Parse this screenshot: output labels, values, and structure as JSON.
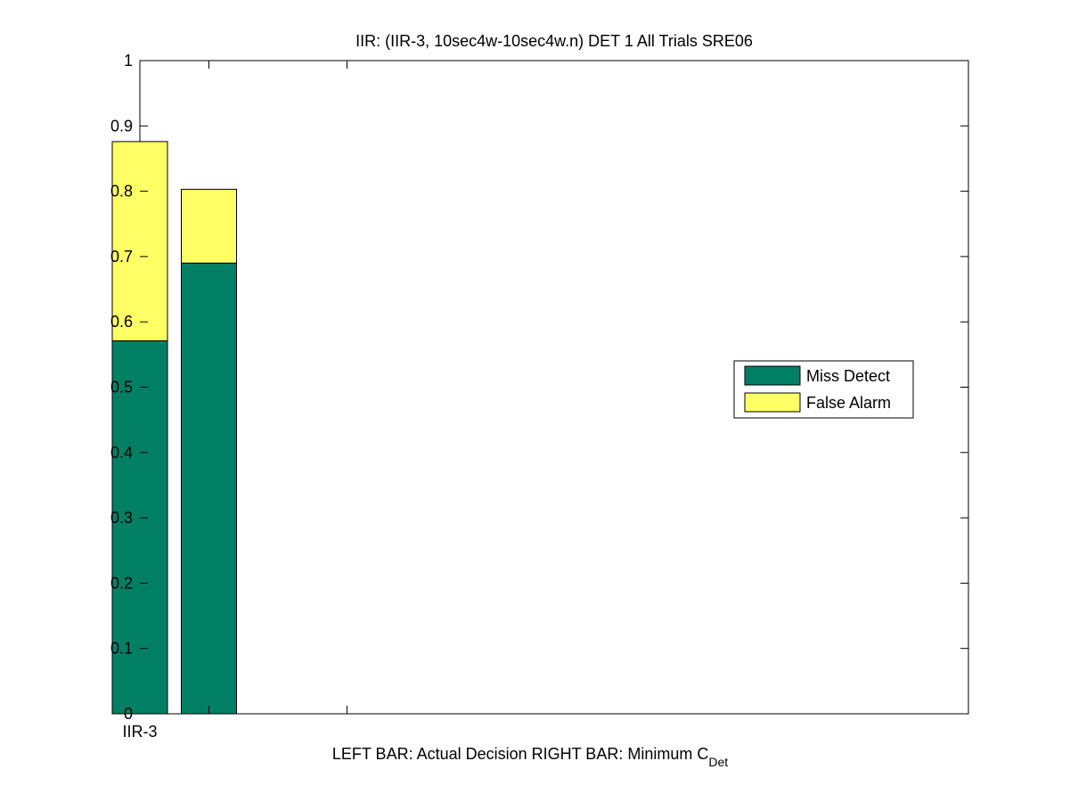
{
  "chart_data": {
    "type": "bar",
    "stacked": true,
    "title": "IIR: (IIR-3, 10sec4w-10sec4w.n) DET 1 All Trials SRE06",
    "xlabel": {
      "main": "LEFT BAR: Actual Decision     RIGHT BAR: Minimum C",
      "subscript": "Det"
    },
    "ylabel": "",
    "ylim": [
      0,
      1
    ],
    "yticks": [
      0,
      0.1,
      0.2,
      0.3,
      0.4,
      0.5,
      0.6,
      0.7,
      0.8,
      0.9,
      1
    ],
    "ytick_labels": [
      "0",
      "0.1",
      "0.2",
      "0.3",
      "0.4",
      "0.5",
      "0.6",
      "0.7",
      "0.8",
      "0.9",
      "1"
    ],
    "xlim": [
      0.5,
      6.5
    ],
    "xticks": [
      1,
      2
    ],
    "xtick_labels": [
      "IIR-3",
      ""
    ],
    "bars": [
      {
        "x": 0.5,
        "miss": 0.571,
        "false_alarm": 0.305
      },
      {
        "x": 1.0,
        "miss": 0.69,
        "false_alarm": 0.113
      }
    ],
    "bar_width": 0.4,
    "series": [
      {
        "name": "Miss Detect",
        "key": "miss",
        "color": "#007f65"
      },
      {
        "name": "False Alarm",
        "key": "false_alarm",
        "color": "#ffff66"
      }
    ],
    "legend": {
      "position": "right"
    },
    "grid": false
  }
}
